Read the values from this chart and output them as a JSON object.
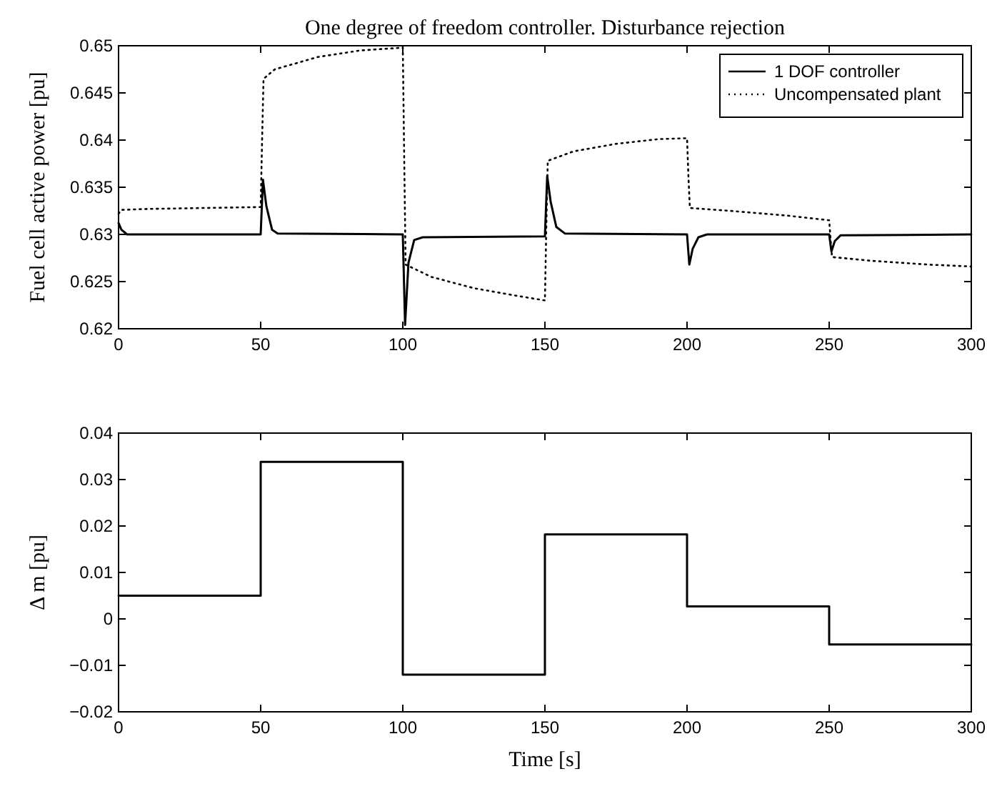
{
  "chart_data": [
    {
      "type": "line",
      "title": "One degree of freedom controller. Disturbance rejection",
      "ylabel": "Fuel cell active power [pu]",
      "xlim": [
        0,
        300
      ],
      "xticks": [
        0,
        50,
        100,
        150,
        200,
        250,
        300
      ],
      "ylim": [
        0.62,
        0.65
      ],
      "yticks": [
        0.62,
        0.625,
        0.63,
        0.635,
        0.64,
        0.645,
        0.65
      ],
      "grid": false,
      "legend": "top right",
      "series": [
        {
          "name": "1 DOF controller",
          "color": "#000000",
          "line_style": "solid",
          "x": [
            0,
            1,
            3,
            50,
            50.8,
            52,
            54,
            56,
            100,
            100.8,
            102,
            104,
            107,
            150,
            150.8,
            152,
            154,
            157,
            200,
            200.8,
            202,
            204,
            207,
            250,
            250.8,
            252,
            254,
            300
          ],
          "values": [
            0.6312,
            0.6305,
            0.63,
            0.63,
            0.6358,
            0.633,
            0.6305,
            0.6301,
            0.63,
            0.6204,
            0.627,
            0.6294,
            0.6297,
            0.6298,
            0.6362,
            0.6335,
            0.6308,
            0.6301,
            0.63,
            0.6268,
            0.6285,
            0.6297,
            0.63,
            0.63,
            0.6282,
            0.6293,
            0.6299,
            0.63
          ]
        },
        {
          "name": "Uncompensated plant",
          "color": "#000000",
          "line_style": "dotted",
          "x": [
            0,
            1,
            10,
            50,
            50.5,
            51,
            55,
            70,
            85,
            100,
            100.5,
            101,
            110,
            125,
            140,
            150,
            150.5,
            151,
            160,
            175,
            190,
            200,
            200.5,
            201,
            215,
            235,
            250,
            250.5,
            251,
            265,
            285,
            300
          ],
          "values": [
            0.6322,
            0.6326,
            0.6327,
            0.6329,
            0.64,
            0.6465,
            0.6475,
            0.6488,
            0.6495,
            0.6498,
            0.638,
            0.6268,
            0.6255,
            0.6243,
            0.6235,
            0.623,
            0.631,
            0.6378,
            0.6388,
            0.6396,
            0.6401,
            0.6402,
            0.636,
            0.6328,
            0.6325,
            0.632,
            0.6315,
            0.6295,
            0.6276,
            0.6272,
            0.6268,
            0.6266
          ]
        }
      ]
    },
    {
      "type": "step",
      "xlabel": "Time [s]",
      "ylabel": "Δ m [pu]",
      "xlim": [
        0,
        300
      ],
      "xticks": [
        0,
        50,
        100,
        150,
        200,
        250,
        300
      ],
      "ylim": [
        -0.02,
        0.04
      ],
      "yticks": [
        {
          "value": -0.02,
          "label": "−0.02"
        },
        {
          "value": -0.01,
          "label": "−0.01"
        },
        0,
        0.01,
        0.02,
        0.03,
        0.04
      ],
      "grid": false,
      "series": [
        {
          "color": "#000000",
          "line_style": "solid",
          "x": [
            0,
            50,
            100,
            150,
            200,
            250,
            300
          ],
          "values": [
            0.005,
            0.0338,
            -0.012,
            0.0182,
            0.0027,
            -0.0055,
            -0.0055
          ]
        }
      ]
    }
  ]
}
